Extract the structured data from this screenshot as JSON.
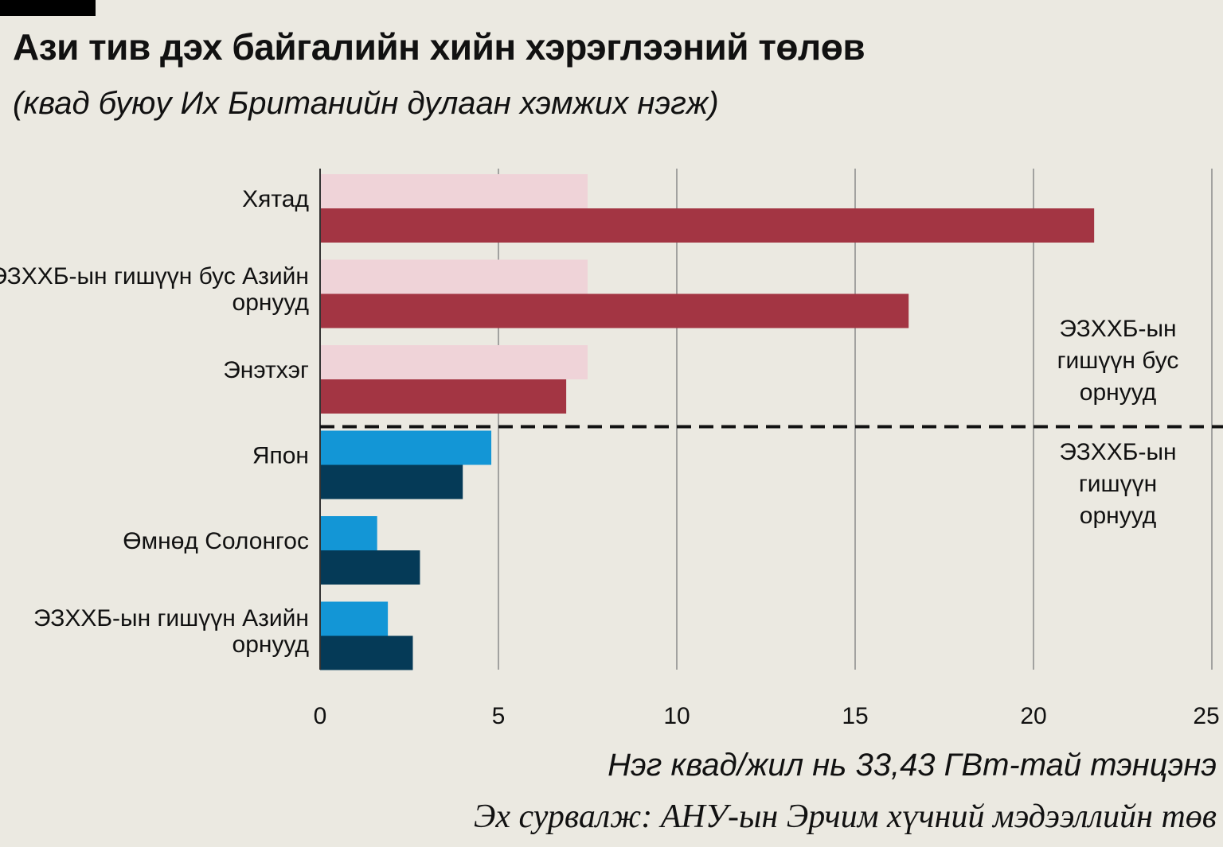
{
  "title": "Ази тив дэх байгалийн хийн хэрэглээний төлөв",
  "subtitle": "(квад буюу Их Британийн дулаан хэмжих нэгж)",
  "note": "Нэг квад/жил нь 33,43 ГВт-тай тэнцэнэ",
  "source": "Эх сурвалж: АНУ-ын Эрчим хүчний мэдээллийн төв",
  "colors": {
    "non_oecd_light": "#efd3d8",
    "non_oecd_dark": "#a33543",
    "oecd_light": "#1396d6",
    "oecd_dark": "#053a57"
  },
  "chart_data": {
    "type": "bar",
    "orientation": "horizontal",
    "xlim": [
      0,
      25
    ],
    "xticks": [
      "0",
      "5",
      "10",
      "15",
      "20",
      "25"
    ],
    "grid": true,
    "categories": [
      {
        "lines": [
          "Хятад"
        ],
        "group": "non_oecd",
        "values": [
          7.5,
          21.7
        ]
      },
      {
        "lines": [
          "ЭЗХХБ-ын гишүүн бус Азийн",
          "орнууд"
        ],
        "group": "non_oecd",
        "values": [
          7.5,
          16.5
        ]
      },
      {
        "lines": [
          "Энэтхэг"
        ],
        "group": "non_oecd",
        "values": [
          7.5,
          6.9
        ]
      },
      {
        "lines": [
          "Япон"
        ],
        "group": "oecd",
        "values": [
          4.8,
          4.0
        ]
      },
      {
        "lines": [
          "Өмнөд Солонгос"
        ],
        "group": "oecd",
        "values": [
          1.6,
          2.8
        ]
      },
      {
        "lines": [
          "ЭЗХХБ-ын гишүүн Азийн",
          "орнууд"
        ],
        "group": "oecd",
        "values": [
          1.9,
          2.6
        ]
      }
    ],
    "group_labels": {
      "non_oecd": [
        "ЭЗХХБ-ын",
        "гишүүн бус",
        "орнууд"
      ],
      "oecd": [
        "ЭЗХХБ-ын",
        "гишүүн",
        "орнууд"
      ]
    }
  }
}
